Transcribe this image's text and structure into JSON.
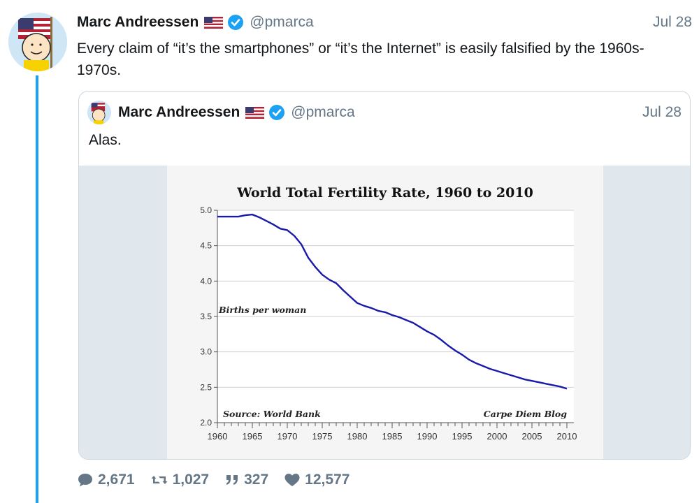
{
  "tweet": {
    "author_name": "Marc Andreessen",
    "handle": "@pmarca",
    "date": "Jul 28",
    "text": "Every claim of “it’s the smartphones” or “it’s the Internet” is easily falsified by the 1960s-1970s."
  },
  "quoted_tweet": {
    "author_name": "Marc Andreessen",
    "handle": "@pmarca",
    "date": "Jul 28",
    "text": "Alas."
  },
  "icons": {
    "flag": "us-flag-icon",
    "verified": "verified-badge-icon",
    "reply": "reply-icon",
    "retweet": "retweet-icon",
    "quote": "quote-icon",
    "like": "heart-icon"
  },
  "actions": {
    "replies": "2,671",
    "retweets": "1,027",
    "quotes": "327",
    "likes": "12,577"
  },
  "colors": {
    "accent": "#1da1f2",
    "muted": "#657786",
    "line": "#1a1aaa"
  },
  "chart_data": {
    "type": "line",
    "title": "World Total Fertility Rate, 1960 to 2010",
    "annotation": "Births per woman",
    "source": "Source: World Bank",
    "credit": "Carpe Diem Blog",
    "xlim": [
      1960,
      2011
    ],
    "ylim": [
      2.0,
      5.0
    ],
    "x_ticks": [
      1960,
      1965,
      1970,
      1975,
      1980,
      1985,
      1990,
      1995,
      2000,
      2005,
      2010
    ],
    "y_ticks": [
      "2.0",
      "2.5",
      "3.0",
      "3.5",
      "4.0",
      "4.5",
      "5.0"
    ],
    "grid": true,
    "series": [
      {
        "x": [
          1960,
          1961,
          1962,
          1963,
          1964,
          1965,
          1966,
          1967,
          1968,
          1969,
          1970,
          1971,
          1972,
          1973,
          1974,
          1975,
          1976,
          1977,
          1978,
          1979,
          1980,
          1981,
          1982,
          1983,
          1984,
          1985,
          1986,
          1987,
          1988,
          1989,
          1990,
          1991,
          1992,
          1993,
          1994,
          1995,
          1996,
          1997,
          1998,
          1999,
          2000,
          2001,
          2002,
          2003,
          2004,
          2005,
          2006,
          2007,
          2008,
          2009,
          2010
        ],
        "y": [
          4.91,
          4.91,
          4.91,
          4.91,
          4.93,
          4.94,
          4.9,
          4.85,
          4.8,
          4.74,
          4.72,
          4.64,
          4.52,
          4.33,
          4.2,
          4.09,
          4.02,
          3.97,
          3.87,
          3.78,
          3.69,
          3.65,
          3.62,
          3.58,
          3.56,
          3.52,
          3.49,
          3.45,
          3.41,
          3.35,
          3.29,
          3.24,
          3.17,
          3.09,
          3.02,
          2.96,
          2.89,
          2.84,
          2.8,
          2.76,
          2.73,
          2.7,
          2.67,
          2.64,
          2.61,
          2.59,
          2.57,
          2.55,
          2.53,
          2.51,
          2.48
        ]
      }
    ]
  }
}
